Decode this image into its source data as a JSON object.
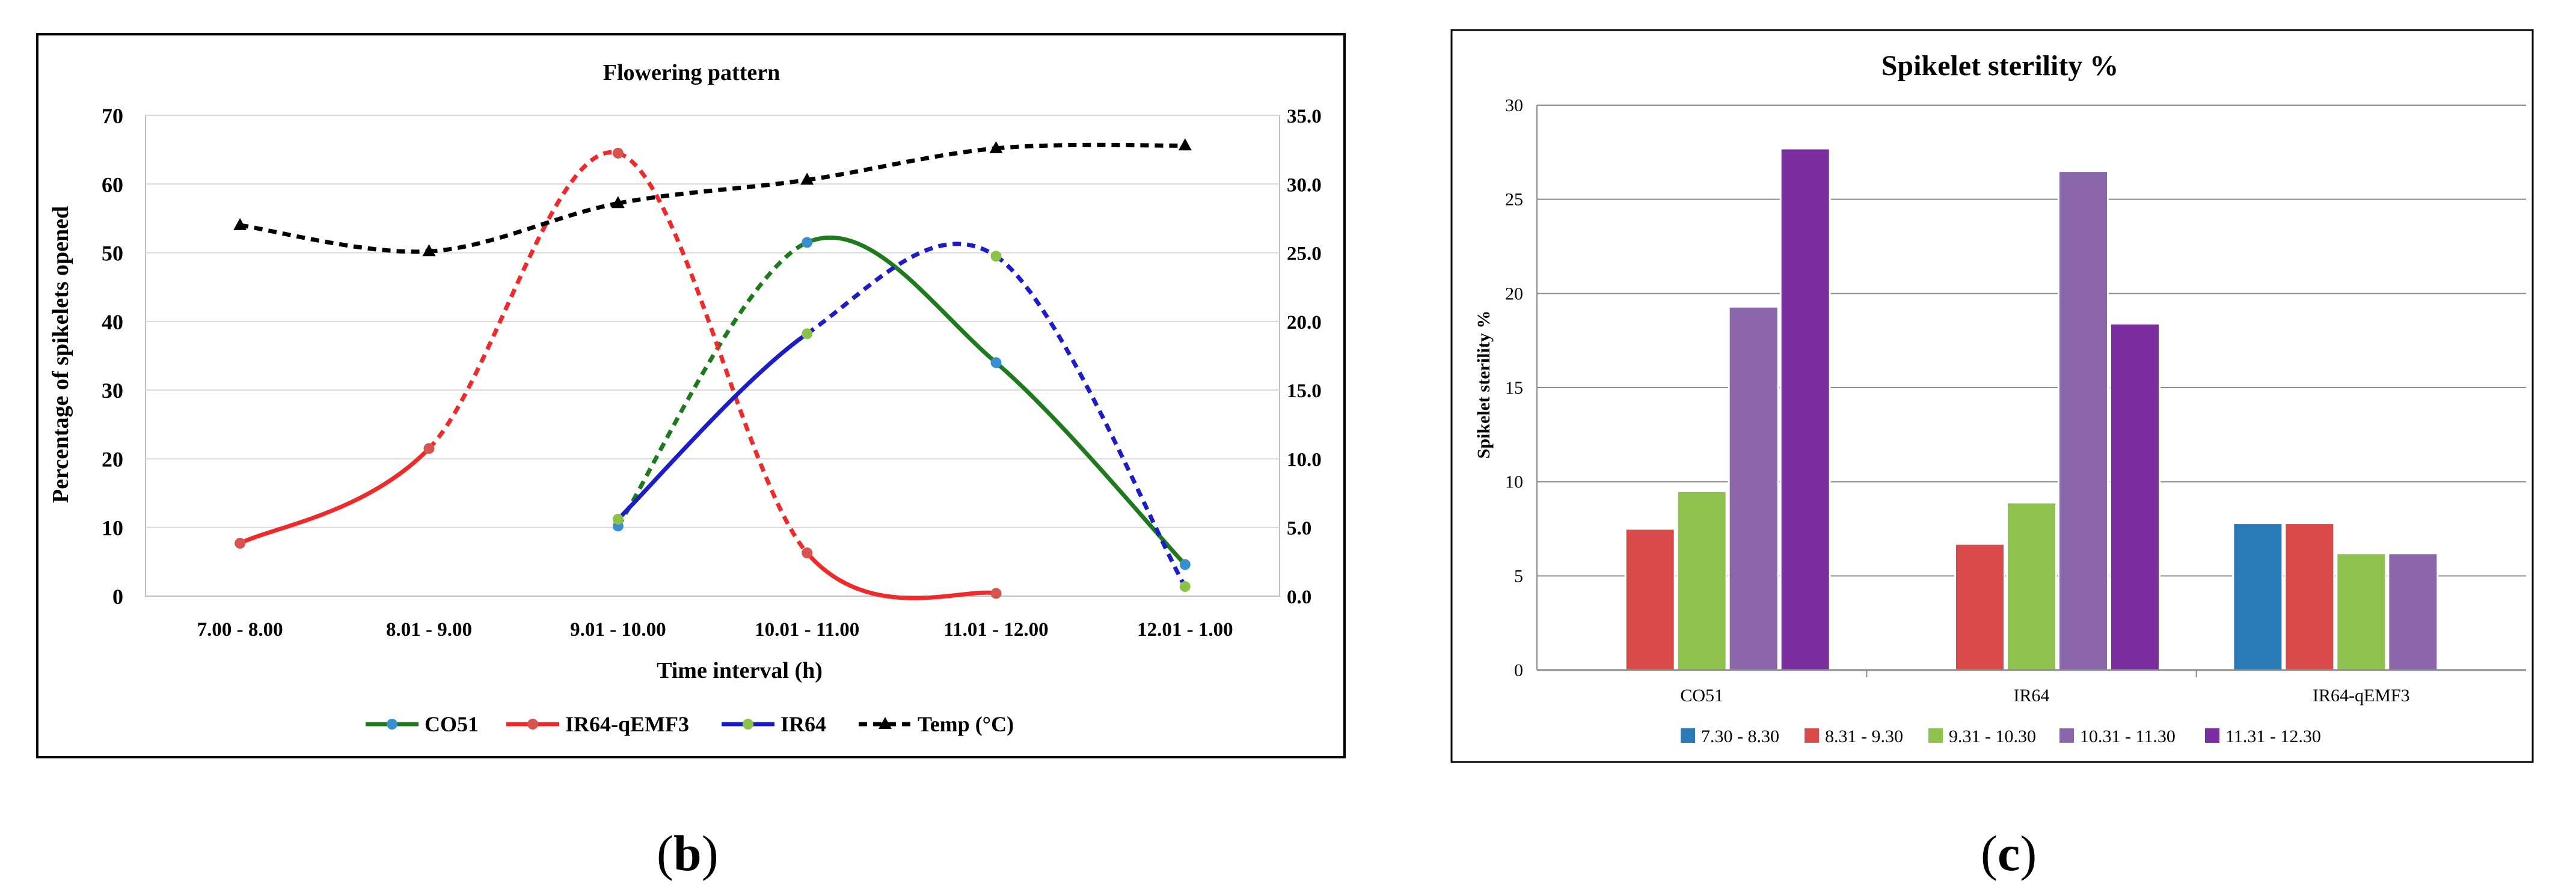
{
  "chart_data": [
    {
      "panel": "(b)",
      "type": "line",
      "title": "Flowering pattern",
      "xlabel": "Time interval (h)",
      "ylabel": "Percentage of spikelets opened",
      "ylim": [
        0,
        70
      ],
      "y_ticks": [
        0,
        10,
        20,
        30,
        40,
        50,
        60,
        70
      ],
      "y2lim": [
        0,
        35
      ],
      "y2_ticks": [
        "0.0",
        "5.0",
        "10.0",
        "15.0",
        "20.0",
        "25.0",
        "30.0",
        "35.0"
      ],
      "categories": [
        "7.00 - 8.00",
        "8.01 - 9.00",
        "9.01 - 10.00",
        "10.01 - 11.00",
        "11.01 - 12.00",
        "12.01 - 1.00"
      ],
      "series": [
        {
          "name": "CO51",
          "color": "#1f7a1f",
          "marker_color": "#3a8fd0",
          "axis": "left",
          "values": [
            null,
            null,
            10.2,
            51.5,
            34.0,
            4.6
          ]
        },
        {
          "name": "IR64-qEMF3",
          "color": "#ee2a2a",
          "marker_color": "#d9534f",
          "axis": "left",
          "values": [
            7.7,
            21.5,
            64.5,
            6.3,
            0.4,
            null
          ]
        },
        {
          "name": "IR64",
          "color": "#1c1cc8",
          "marker_color": "#8dc24a",
          "axis": "left",
          "values": [
            null,
            null,
            11.2,
            38.2,
            49.5,
            1.4
          ]
        },
        {
          "name": "Temp (°C)",
          "color": "#000000",
          "marker_color": "#000000",
          "axis": "right",
          "values": [
            27.0,
            25.1,
            28.6,
            30.3,
            32.6,
            32.8
          ]
        }
      ],
      "legend_position": "bottom"
    },
    {
      "panel": "(c)",
      "type": "bar",
      "title": "Spikelet sterility %",
      "xlabel": "",
      "ylabel": "Spikelet sterility %",
      "ylim": [
        0,
        30
      ],
      "y_ticks": [
        0,
        5,
        10,
        15,
        20,
        25,
        30
      ],
      "grid": true,
      "categories": [
        "CO51",
        "IR64",
        "IR64-qEMF3"
      ],
      "series": [
        {
          "name": "7.30 - 8.30",
          "color": "#2a7ab8",
          "values": [
            null,
            null,
            7.8
          ]
        },
        {
          "name": "8.31 - 9.30",
          "color": "#d94b4b",
          "values": [
            7.5,
            6.7,
            7.8
          ]
        },
        {
          "name": "9.31 - 10.30",
          "color": "#8fc14f",
          "values": [
            9.5,
            8.9,
            6.2
          ]
        },
        {
          "name": "10.31 - 11.30",
          "color": "#8b66aa",
          "values": [
            19.3,
            26.5,
            6.2
          ]
        },
        {
          "name": "11.31 - 12.30",
          "color": "#7b2ea0",
          "values": [
            27.7,
            18.4,
            null
          ]
        }
      ],
      "legend_position": "bottom"
    }
  ]
}
